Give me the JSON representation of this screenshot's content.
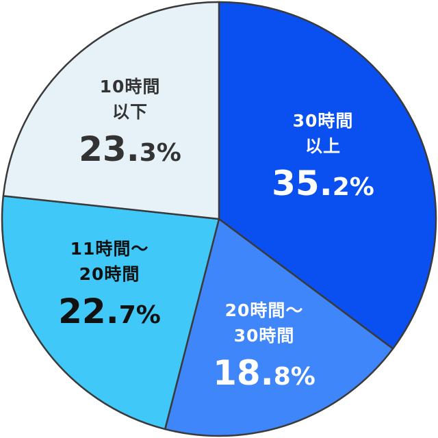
{
  "chart_data": {
    "type": "pie",
    "slices": [
      {
        "id": "over-30",
        "label_lines": [
          "30時間",
          "以上"
        ],
        "value": 35.2,
        "value_int": "35.",
        "value_dec": "2%",
        "color": "#0a4ff0",
        "text_color": "#ffffff"
      },
      {
        "id": "20-30",
        "label_lines": [
          "20時間〜",
          "30時間"
        ],
        "value": 18.8,
        "value_int": "18.",
        "value_dec": "8%",
        "color": "#3f86fa",
        "text_color": "#ffffff"
      },
      {
        "id": "11-20",
        "label_lines": [
          "11時間〜",
          "20時間"
        ],
        "value": 22.7,
        "value_int": "22.",
        "value_dec": "7%",
        "color": "#3fc8f8",
        "text_color": "#111111"
      },
      {
        "id": "under-10",
        "label_lines": [
          "10時間",
          "以下"
        ],
        "value": 23.3,
        "value_int": "23.",
        "value_dec": "3%",
        "color": "#e7f2f8",
        "text_color": "#333333"
      }
    ]
  }
}
